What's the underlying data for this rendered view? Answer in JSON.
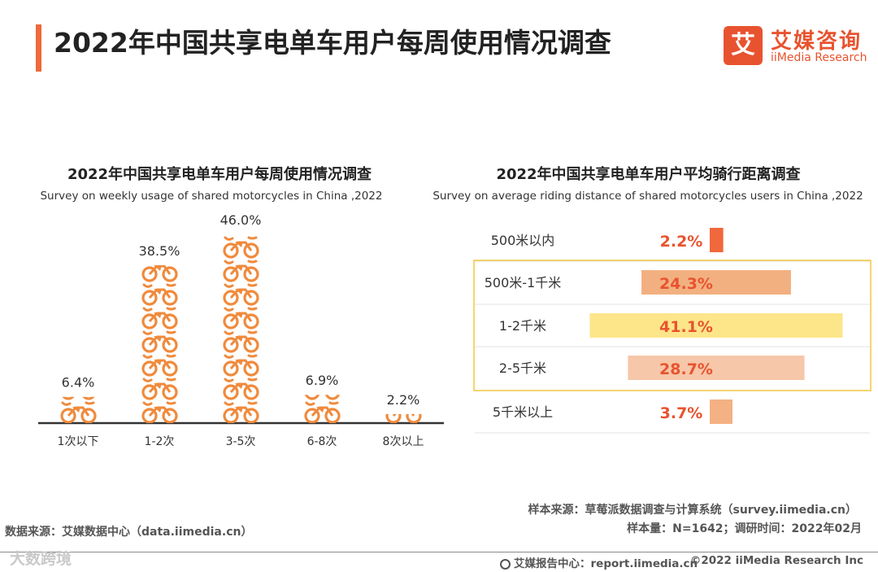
{
  "header": {
    "title": "2022年中国共享电单车用户每周使用情况调查",
    "logo_mark": "艾",
    "logo_cn": "艾媒咨询",
    "logo_en": "iiMedia Research"
  },
  "chart_data": [
    {
      "type": "bar",
      "title": "2022年中国共享电单车用户每周使用情况调查",
      "subtitle": "Survey on weekly usage of shared motorcycles in China ,2022",
      "categories": [
        "1次以下",
        "1-2次",
        "3-5次",
        "6-8次",
        "8次以上"
      ],
      "values": [
        6.4,
        38.5,
        46.0,
        6.9,
        2.2
      ],
      "labels": [
        "6.4%",
        "38.5%",
        "46.0%",
        "6.9%",
        "2.2%"
      ],
      "unit": "%",
      "mark_icon": "motorcycle-icon",
      "bar_color": "#f08a3c",
      "label_color": "#333333",
      "baseline_color": "#333333"
    },
    {
      "type": "bar",
      "orientation": "horizontal",
      "title": "2022年中国共享电单车用户平均骑行距离调查",
      "subtitle": "Survey on average riding distance of shared motorcycles users in China ,2022",
      "categories": [
        "500米以内",
        "500米-1千米",
        "1-2千米",
        "2-5千米",
        "5千米以上"
      ],
      "values": [
        2.2,
        24.3,
        41.1,
        28.7,
        3.7
      ],
      "labels": [
        "2.2%",
        "24.3%",
        "41.1%",
        "28.7%",
        "3.7%"
      ],
      "colors": [
        "#f0683c",
        "#f2b080",
        "#fde58a",
        "#f6c7a8",
        "#f3b184"
      ],
      "label_color": "#e8532f",
      "highlight_categories": [
        "500米-1千米",
        "1-2千米",
        "2-5千米"
      ],
      "highlight_color": "#f4c542"
    }
  ],
  "sources": {
    "left": "数据来源：艾媒数据中心（data.iimedia.cn）",
    "right_line1": "样本来源：草莓派数据调查与计算系统（survey.iimedia.cn）",
    "right_line2": "样本量：N=1642；调研时间：2022年02月"
  },
  "footer": {
    "watermark": "大数跨境",
    "report": "艾媒报告中心：report.iimedia.cn",
    "copyright": "©2022  iiMedia Research  Inc"
  }
}
